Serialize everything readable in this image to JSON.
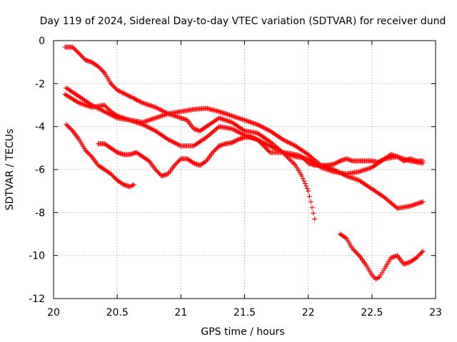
{
  "chart_data": {
    "type": "scatter",
    "title": "Day 119 of 2024, Sidereal Day-to-day VTEC variation (SDTVAR) for receiver dund",
    "xlabel": "GPS time / hours",
    "ylabel": "SDTVAR / TECUs",
    "xlim": [
      20,
      23
    ],
    "ylim": [
      -12,
      0
    ],
    "xticks": [
      20,
      20.5,
      21,
      21.5,
      22,
      22.5,
      23
    ],
    "xtick_labels": [
      "20",
      "20.5",
      "21",
      "21.5",
      "22",
      "22.5",
      "23"
    ],
    "yticks": [
      0,
      -2,
      -4,
      -6,
      -8,
      -10,
      -12
    ],
    "ytick_labels": [
      "0",
      "-2",
      "-4",
      "-6",
      "-8",
      "-10",
      "-12"
    ],
    "grid": true,
    "marker": "+",
    "color": "#ff0000",
    "series": [
      {
        "name": "track-1",
        "points": [
          [
            20.09,
            -0.3
          ],
          [
            20.15,
            -0.3
          ],
          [
            20.2,
            -0.6
          ],
          [
            20.25,
            -0.9
          ],
          [
            20.3,
            -1.0
          ],
          [
            20.35,
            -1.2
          ],
          [
            20.4,
            -1.5
          ],
          [
            20.45,
            -2.0
          ],
          [
            20.5,
            -2.3
          ],
          [
            20.6,
            -2.6
          ],
          [
            20.7,
            -2.9
          ],
          [
            20.8,
            -3.1
          ],
          [
            20.9,
            -3.4
          ],
          [
            21.0,
            -3.6
          ],
          [
            21.05,
            -3.7
          ],
          [
            21.1,
            -4.1
          ],
          [
            21.15,
            -4.2
          ],
          [
            21.2,
            -4.0
          ],
          [
            21.3,
            -3.6
          ],
          [
            21.4,
            -3.8
          ],
          [
            21.5,
            -4.2
          ],
          [
            21.6,
            -4.3
          ],
          [
            21.7,
            -4.7
          ],
          [
            21.8,
            -5.2
          ],
          [
            21.9,
            -5.8
          ],
          [
            21.95,
            -6.3
          ],
          [
            22.0,
            -7.0
          ],
          [
            22.02,
            -7.5
          ],
          [
            22.05,
            -8.3
          ]
        ]
      },
      {
        "name": "track-2",
        "points": [
          [
            20.1,
            -2.2
          ],
          [
            20.2,
            -2.6
          ],
          [
            20.3,
            -3.0
          ],
          [
            20.4,
            -3.3
          ],
          [
            20.5,
            -3.6
          ],
          [
            20.6,
            -3.7
          ],
          [
            20.7,
            -3.8
          ],
          [
            20.8,
            -3.6
          ],
          [
            20.9,
            -3.4
          ],
          [
            21.0,
            -3.3
          ],
          [
            21.1,
            -3.2
          ],
          [
            21.2,
            -3.15
          ],
          [
            21.3,
            -3.3
          ],
          [
            21.4,
            -3.5
          ],
          [
            21.5,
            -3.7
          ],
          [
            21.6,
            -3.9
          ],
          [
            21.7,
            -4.2
          ],
          [
            21.8,
            -4.6
          ],
          [
            21.9,
            -4.9
          ],
          [
            22.0,
            -5.3
          ],
          [
            22.1,
            -5.8
          ],
          [
            22.2,
            -6.0
          ],
          [
            22.3,
            -6.3
          ],
          [
            22.4,
            -6.5
          ],
          [
            22.5,
            -6.9
          ],
          [
            22.6,
            -7.3
          ],
          [
            22.7,
            -7.8
          ],
          [
            22.8,
            -7.7
          ],
          [
            22.9,
            -7.5
          ]
        ]
      },
      {
        "name": "track-3",
        "points": [
          [
            20.09,
            -2.5
          ],
          [
            20.2,
            -2.9
          ],
          [
            20.3,
            -3.1
          ],
          [
            20.4,
            -3.0
          ],
          [
            20.45,
            -3.3
          ],
          [
            20.5,
            -3.5
          ],
          [
            20.6,
            -3.7
          ],
          [
            20.7,
            -3.9
          ],
          [
            20.8,
            -4.2
          ],
          [
            20.9,
            -4.6
          ],
          [
            21.0,
            -4.9
          ],
          [
            21.1,
            -4.9
          ],
          [
            21.2,
            -4.5
          ],
          [
            21.3,
            -4.0
          ],
          [
            21.4,
            -4.1
          ],
          [
            21.5,
            -4.4
          ],
          [
            21.6,
            -4.6
          ],
          [
            21.7,
            -4.9
          ],
          [
            21.8,
            -5.2
          ],
          [
            21.9,
            -5.4
          ],
          [
            22.0,
            -5.5
          ],
          [
            22.1,
            -5.9
          ],
          [
            22.2,
            -6.1
          ],
          [
            22.3,
            -6.2
          ],
          [
            22.4,
            -6.1
          ],
          [
            22.5,
            -5.9
          ],
          [
            22.6,
            -5.5
          ],
          [
            22.7,
            -5.4
          ],
          [
            22.8,
            -5.6
          ],
          [
            22.9,
            -5.7
          ]
        ]
      },
      {
        "name": "track-4",
        "points": [
          [
            20.1,
            -3.9
          ],
          [
            20.15,
            -4.2
          ],
          [
            20.2,
            -4.6
          ],
          [
            20.25,
            -5.1
          ],
          [
            20.3,
            -5.4
          ],
          [
            20.35,
            -5.8
          ],
          [
            20.4,
            -6.0
          ],
          [
            20.45,
            -6.2
          ],
          [
            20.5,
            -6.5
          ],
          [
            20.55,
            -6.7
          ],
          [
            20.6,
            -6.8
          ],
          [
            20.63,
            -6.7
          ]
        ]
      },
      {
        "name": "track-5",
        "points": [
          [
            20.35,
            -4.8
          ],
          [
            20.4,
            -4.8
          ],
          [
            20.45,
            -5.0
          ],
          [
            20.5,
            -5.2
          ],
          [
            20.55,
            -5.3
          ],
          [
            20.6,
            -5.3
          ],
          [
            20.65,
            -5.2
          ],
          [
            20.7,
            -5.4
          ],
          [
            20.75,
            -5.6
          ],
          [
            20.8,
            -6.0
          ],
          [
            20.85,
            -6.3
          ],
          [
            20.9,
            -6.2
          ],
          [
            20.95,
            -5.8
          ],
          [
            21.0,
            -5.5
          ],
          [
            21.05,
            -5.5
          ],
          [
            21.1,
            -5.7
          ],
          [
            21.15,
            -5.8
          ],
          [
            21.2,
            -5.6
          ],
          [
            21.25,
            -5.2
          ],
          [
            21.3,
            -4.9
          ],
          [
            21.35,
            -4.8
          ],
          [
            21.4,
            -4.75
          ],
          [
            21.45,
            -4.6
          ],
          [
            21.5,
            -4.5
          ],
          [
            21.55,
            -4.5
          ],
          [
            21.6,
            -4.6
          ],
          [
            21.65,
            -4.9
          ],
          [
            21.7,
            -5.2
          ],
          [
            21.8,
            -5.2
          ],
          [
            21.9,
            -5.3
          ],
          [
            21.95,
            -5.4
          ],
          [
            22.0,
            -5.7
          ],
          [
            22.05,
            -5.8
          ],
          [
            22.1,
            -5.8
          ],
          [
            22.15,
            -5.8
          ],
          [
            22.2,
            -5.75
          ],
          [
            22.25,
            -5.6
          ],
          [
            22.3,
            -5.5
          ],
          [
            22.35,
            -5.6
          ],
          [
            22.4,
            -5.6
          ],
          [
            22.45,
            -5.6
          ],
          [
            22.5,
            -5.6
          ],
          [
            22.55,
            -5.65
          ],
          [
            22.6,
            -5.5
          ],
          [
            22.65,
            -5.3
          ],
          [
            22.7,
            -5.4
          ],
          [
            22.75,
            -5.6
          ],
          [
            22.8,
            -5.5
          ],
          [
            22.85,
            -5.6
          ],
          [
            22.9,
            -5.6
          ]
        ]
      },
      {
        "name": "track-6",
        "points": [
          [
            22.25,
            -9.0
          ],
          [
            22.3,
            -9.2
          ],
          [
            22.35,
            -9.7
          ],
          [
            22.4,
            -10.0
          ],
          [
            22.45,
            -10.4
          ],
          [
            22.5,
            -10.9
          ],
          [
            22.53,
            -11.1
          ],
          [
            22.56,
            -11.0
          ],
          [
            22.6,
            -10.6
          ],
          [
            22.65,
            -10.1
          ],
          [
            22.7,
            -10.0
          ],
          [
            22.75,
            -10.4
          ],
          [
            22.8,
            -10.3
          ],
          [
            22.85,
            -10.1
          ],
          [
            22.9,
            -9.8
          ]
        ]
      }
    ]
  }
}
